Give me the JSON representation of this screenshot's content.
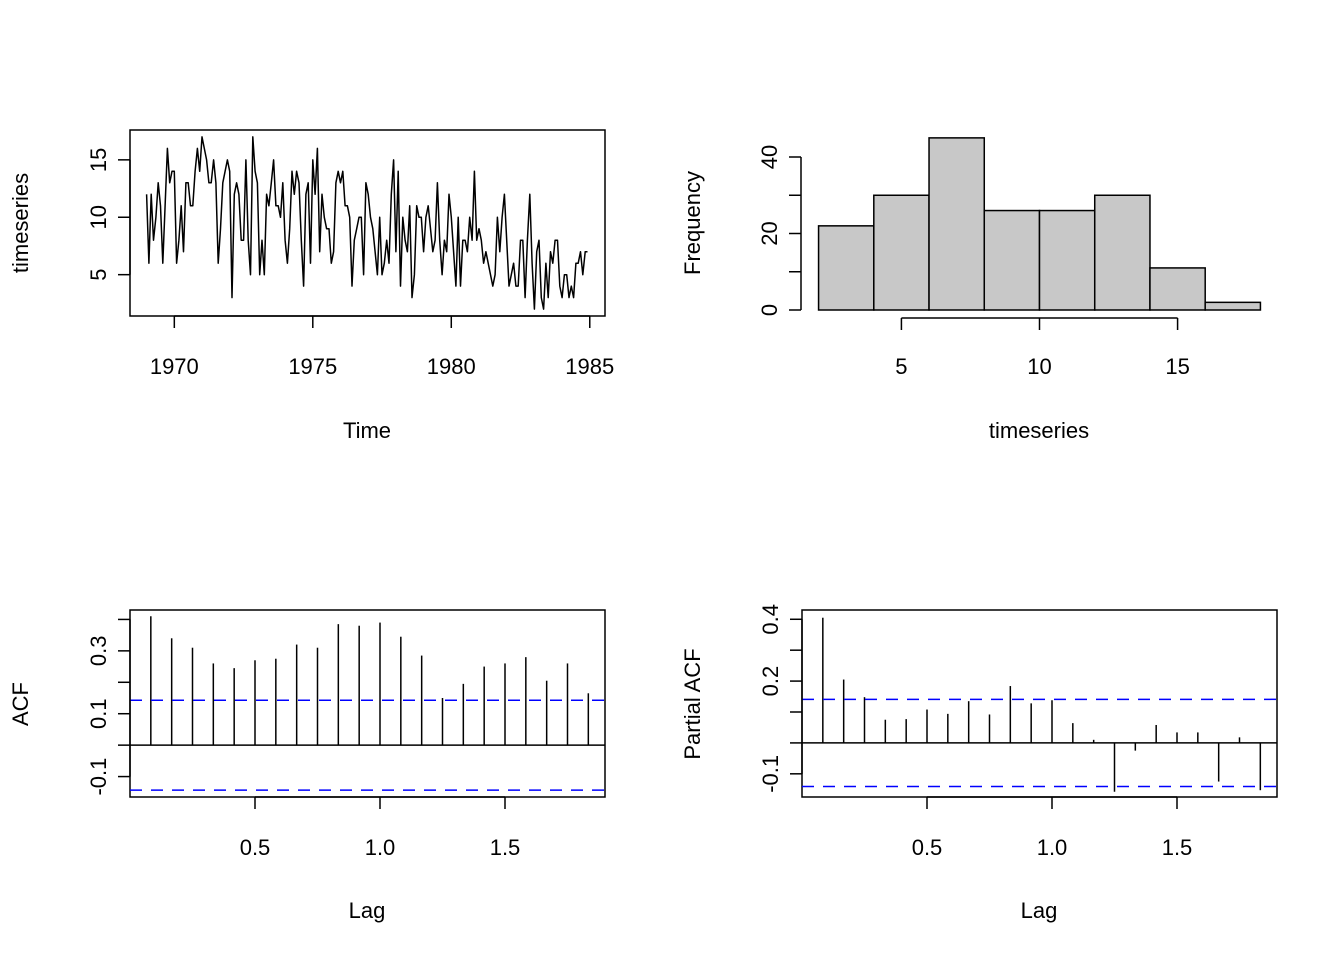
{
  "chart_data": [
    {
      "type": "line",
      "panel": "top-left",
      "title": "",
      "xlabel": "Time",
      "ylabel": "timeseries",
      "xlim": [
        1968.4,
        1985.55
      ],
      "ylim": [
        1.4,
        17.6
      ],
      "xticks": [
        1970,
        1975,
        1980,
        1985
      ],
      "xtick_labels": [
        "1970",
        "1975",
        "1980",
        "1985"
      ],
      "yticks": [
        5,
        10,
        15
      ],
      "ytick_labels": [
        "5",
        "10",
        "15"
      ],
      "start": 1969.0,
      "frequency": 12,
      "values": [
        12,
        6,
        12,
        8,
        10,
        13,
        11,
        6,
        11,
        16,
        13,
        14,
        14,
        6,
        8,
        11,
        7,
        13,
        13,
        11,
        11,
        14,
        16,
        14,
        17,
        16,
        15,
        13,
        13,
        15,
        13,
        6,
        9,
        13,
        14,
        15,
        14,
        3,
        12,
        13,
        12,
        8,
        8,
        15,
        8,
        5,
        17,
        14,
        13,
        5,
        8,
        5,
        12,
        11,
        13,
        15,
        11,
        11,
        10,
        13,
        8,
        6,
        9,
        14,
        12,
        14,
        13,
        8,
        4,
        12,
        13,
        6,
        15,
        12,
        16,
        7,
        12,
        10,
        9,
        9,
        6,
        7,
        13,
        14,
        13,
        14,
        11,
        11,
        10,
        4,
        8,
        9,
        10,
        10,
        5,
        13,
        12,
        10,
        9,
        7,
        5,
        10,
        5,
        6,
        8,
        6,
        12,
        15,
        7,
        14,
        4,
        10,
        8,
        7,
        11,
        3,
        5,
        11,
        10,
        10,
        7,
        10,
        11,
        9,
        7,
        8,
        13,
        8,
        5,
        8,
        7,
        12,
        10,
        7,
        4,
        10,
        4,
        8,
        8,
        7,
        10,
        8,
        14,
        8,
        9,
        8,
        6,
        7,
        6,
        5,
        4,
        5,
        10,
        7,
        10,
        12,
        8,
        4,
        5,
        6,
        4,
        4,
        8,
        8,
        3,
        8,
        12,
        6,
        2,
        7,
        8,
        3,
        2,
        6,
        3,
        7,
        6,
        8,
        8,
        4,
        3,
        5,
        5,
        3,
        4,
        3,
        6,
        6,
        7,
        5,
        7,
        7
      ]
    },
    {
      "type": "bar",
      "subtype": "histogram",
      "panel": "top-right",
      "title": "",
      "xlabel": "timeseries",
      "ylabel": "Frequency",
      "bin_edges": [
        2,
        4,
        6,
        8,
        10,
        12,
        14,
        16,
        18
      ],
      "values": [
        22,
        30,
        45,
        26,
        26,
        30,
        11,
        2
      ],
      "xlim": [
        1.4,
        18.6
      ],
      "ylim": [
        0,
        47
      ],
      "xticks": [
        5,
        10,
        15
      ],
      "xtick_labels": [
        "5",
        "10",
        "15"
      ],
      "yticks": [
        0,
        10,
        20,
        30,
        40
      ],
      "ytick_labels": [
        "0",
        "",
        "20",
        "",
        "40"
      ],
      "fill_color": "#c8c8c8"
    },
    {
      "type": "bar",
      "subtype": "acf",
      "panel": "bottom-left",
      "title": "",
      "xlabel": "Lag",
      "ylabel": "ACF",
      "lags": [
        0.0833,
        0.1667,
        0.25,
        0.3333,
        0.4167,
        0.5,
        0.5833,
        0.6667,
        0.75,
        0.8333,
        0.9167,
        1.0,
        1.0833,
        1.1667,
        1.25,
        1.3333,
        1.4167,
        1.5,
        1.5833,
        1.6667,
        1.75,
        1.8333
      ],
      "values": [
        0.41,
        0.34,
        0.31,
        0.26,
        0.245,
        0.27,
        0.275,
        0.32,
        0.31,
        0.385,
        0.38,
        0.39,
        0.345,
        0.285,
        0.15,
        0.195,
        0.25,
        0.26,
        0.28,
        0.205,
        0.26,
        0.165
      ],
      "ci": 0.143,
      "ci_color": "#0000ff",
      "xlim": [
        -0.0,
        1.9
      ],
      "ylim": [
        -0.165,
        0.43
      ],
      "xticks": [
        0.5,
        1.0,
        1.5
      ],
      "xtick_labels": [
        "0.5",
        "1.0",
        "1.5"
      ],
      "yticks": [
        -0.1,
        0.0,
        0.1,
        0.2,
        0.3,
        0.4
      ],
      "ytick_labels": [
        "-0.1",
        "",
        "0.1",
        "",
        "0.3",
        ""
      ]
    },
    {
      "type": "bar",
      "subtype": "pacf",
      "panel": "bottom-right",
      "title": "",
      "xlabel": "Lag",
      "ylabel": "Partial ACF",
      "lags": [
        0.0833,
        0.1667,
        0.25,
        0.3333,
        0.4167,
        0.5,
        0.5833,
        0.6667,
        0.75,
        0.8333,
        0.9167,
        1.0,
        1.0833,
        1.1667,
        1.25,
        1.3333,
        1.4167,
        1.5,
        1.5833,
        1.6667,
        1.75,
        1.8333
      ],
      "values": [
        0.405,
        0.205,
        0.148,
        0.075,
        0.077,
        0.108,
        0.094,
        0.135,
        0.092,
        0.184,
        0.128,
        0.138,
        0.064,
        0.01,
        -0.158,
        -0.025,
        0.058,
        0.034,
        0.034,
        -0.125,
        0.018,
        -0.153
      ],
      "ci": 0.141,
      "ci_color": "#0000ff",
      "xlim": [
        -0.0,
        1.9
      ],
      "ylim": [
        -0.175,
        0.43
      ],
      "xticks": [
        0.5,
        1.0,
        1.5
      ],
      "xtick_labels": [
        "0.5",
        "1.0",
        "1.5"
      ],
      "yticks": [
        -0.1,
        0.0,
        0.1,
        0.2,
        0.3,
        0.4
      ],
      "ytick_labels": [
        "-0.1",
        "",
        "",
        "0.2",
        "",
        "0.4"
      ]
    }
  ]
}
